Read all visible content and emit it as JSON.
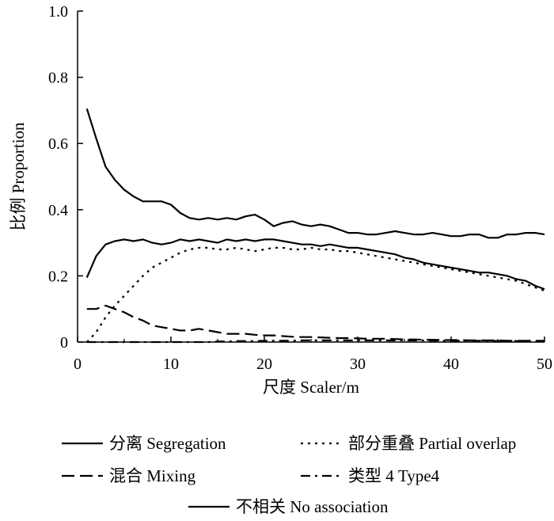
{
  "chart_data": {
    "type": "line",
    "title": "",
    "xlabel": "尺度 Scaler/m",
    "ylabel": "比例 Proportion",
    "xlim": [
      0,
      50
    ],
    "ylim": [
      0,
      1.0
    ],
    "xticks": [
      0,
      10,
      20,
      30,
      40,
      50
    ],
    "xtick_labels": [
      "0",
      "10",
      "20",
      "30",
      "40",
      "50"
    ],
    "yticks": [
      0,
      0.2,
      0.4,
      0.6,
      0.8,
      1.0
    ],
    "ytick_labels": [
      "0",
      "0.2",
      "0.4",
      "0.6",
      "0.8",
      "1.0"
    ],
    "grid": false,
    "legend_position": "bottom",
    "x": [
      1,
      2,
      3,
      4,
      5,
      6,
      7,
      8,
      9,
      10,
      11,
      12,
      13,
      14,
      15,
      16,
      17,
      18,
      19,
      20,
      21,
      22,
      23,
      24,
      25,
      26,
      27,
      28,
      29,
      30,
      31,
      32,
      33,
      34,
      35,
      36,
      37,
      38,
      39,
      40,
      41,
      42,
      43,
      44,
      45,
      46,
      47,
      48,
      49,
      50
    ],
    "series": [
      {
        "name": "分离 Segregation",
        "style": "solid",
        "values": [
          0.195,
          0.26,
          0.295,
          0.305,
          0.31,
          0.305,
          0.31,
          0.3,
          0.295,
          0.3,
          0.31,
          0.305,
          0.31,
          0.305,
          0.3,
          0.31,
          0.305,
          0.31,
          0.305,
          0.31,
          0.31,
          0.305,
          0.3,
          0.295,
          0.295,
          0.29,
          0.295,
          0.29,
          0.285,
          0.285,
          0.28,
          0.275,
          0.27,
          0.265,
          0.255,
          0.25,
          0.24,
          0.235,
          0.23,
          0.225,
          0.22,
          0.215,
          0.21,
          0.21,
          0.205,
          0.2,
          0.19,
          0.185,
          0.17,
          0.16
        ]
      },
      {
        "name": "部分重叠 Partial overlap",
        "style": "dotted",
        "values": [
          0.0,
          0.03,
          0.075,
          0.11,
          0.14,
          0.17,
          0.2,
          0.225,
          0.24,
          0.255,
          0.27,
          0.28,
          0.285,
          0.285,
          0.28,
          0.28,
          0.285,
          0.28,
          0.275,
          0.28,
          0.285,
          0.285,
          0.28,
          0.28,
          0.285,
          0.28,
          0.28,
          0.275,
          0.275,
          0.27,
          0.265,
          0.26,
          0.255,
          0.25,
          0.245,
          0.24,
          0.235,
          0.23,
          0.225,
          0.22,
          0.215,
          0.21,
          0.205,
          0.2,
          0.195,
          0.19,
          0.185,
          0.175,
          0.165,
          0.155
        ]
      },
      {
        "name": "混合 Mixing",
        "style": "dashed",
        "values": [
          0.1,
          0.1,
          0.11,
          0.1,
          0.09,
          0.075,
          0.065,
          0.05,
          0.045,
          0.04,
          0.035,
          0.035,
          0.04,
          0.035,
          0.03,
          0.025,
          0.025,
          0.025,
          0.022,
          0.02,
          0.02,
          0.018,
          0.016,
          0.015,
          0.015,
          0.014,
          0.013,
          0.012,
          0.012,
          0.011,
          0.01,
          0.01,
          0.01,
          0.009,
          0.008,
          0.008,
          0.007,
          0.007,
          0.006,
          0.006,
          0.006,
          0.005,
          0.005,
          0.005,
          0.005,
          0.004,
          0.004,
          0.004,
          0.004,
          0.004
        ]
      },
      {
        "name": "类型 4 Type4",
        "style": "dashdot",
        "values": [
          0.0,
          0.0,
          0.0,
          0.0,
          0.0,
          0.0,
          0.0,
          0.0,
          0.0,
          0.0,
          0.0,
          0.0,
          0.0,
          0.0,
          0.002,
          0.002,
          0.003,
          0.003,
          0.003,
          0.004,
          0.004,
          0.004,
          0.004,
          0.005,
          0.005,
          0.005,
          0.005,
          0.005,
          0.005,
          0.005,
          0.005,
          0.005,
          0.005,
          0.005,
          0.005,
          0.005,
          0.005,
          0.004,
          0.004,
          0.004,
          0.004,
          0.004,
          0.004,
          0.004,
          0.003,
          0.003,
          0.003,
          0.003,
          0.003,
          0.003
        ]
      },
      {
        "name": "不相关 No association",
        "style": "solid",
        "values": [
          0.705,
          0.615,
          0.53,
          0.49,
          0.46,
          0.44,
          0.425,
          0.425,
          0.425,
          0.415,
          0.39,
          0.375,
          0.37,
          0.375,
          0.37,
          0.375,
          0.37,
          0.38,
          0.385,
          0.37,
          0.35,
          0.36,
          0.365,
          0.355,
          0.35,
          0.355,
          0.35,
          0.34,
          0.33,
          0.33,
          0.325,
          0.325,
          0.33,
          0.335,
          0.33,
          0.325,
          0.325,
          0.33,
          0.325,
          0.32,
          0.32,
          0.325,
          0.325,
          0.315,
          0.315,
          0.325,
          0.325,
          0.33,
          0.33,
          0.325
        ]
      }
    ]
  }
}
